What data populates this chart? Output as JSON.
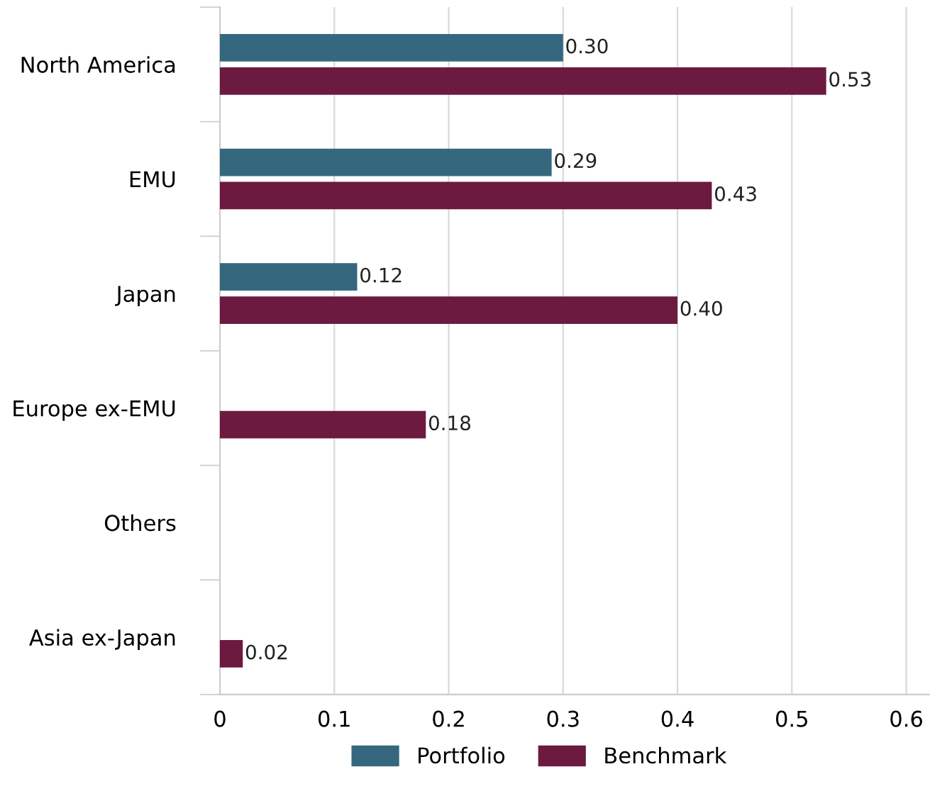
{
  "chart_data": {
    "type": "bar",
    "orientation": "horizontal",
    "categories": [
      "North America",
      "EMU",
      "Japan",
      "Europe ex-EMU",
      "Others",
      "Asia ex-Japan"
    ],
    "series": [
      {
        "name": "Portfolio",
        "color": "#35687f",
        "values": [
          0.3,
          0.29,
          0.12,
          null,
          null,
          null
        ],
        "value_labels": [
          "0.30",
          "0.29",
          "0.12",
          null,
          null,
          null
        ]
      },
      {
        "name": "Benchmark",
        "color": "#6d1a40",
        "values": [
          0.53,
          0.43,
          0.4,
          0.18,
          null,
          0.02
        ],
        "value_labels": [
          "0.53",
          "0.43",
          "0.40",
          "0.18",
          null,
          "0.02"
        ]
      }
    ],
    "xlim": [
      0,
      0.62
    ],
    "xticks": [
      0,
      0.1,
      0.2,
      0.3,
      0.4,
      0.5,
      0.6
    ],
    "grid": "x",
    "legend": "bottom"
  }
}
